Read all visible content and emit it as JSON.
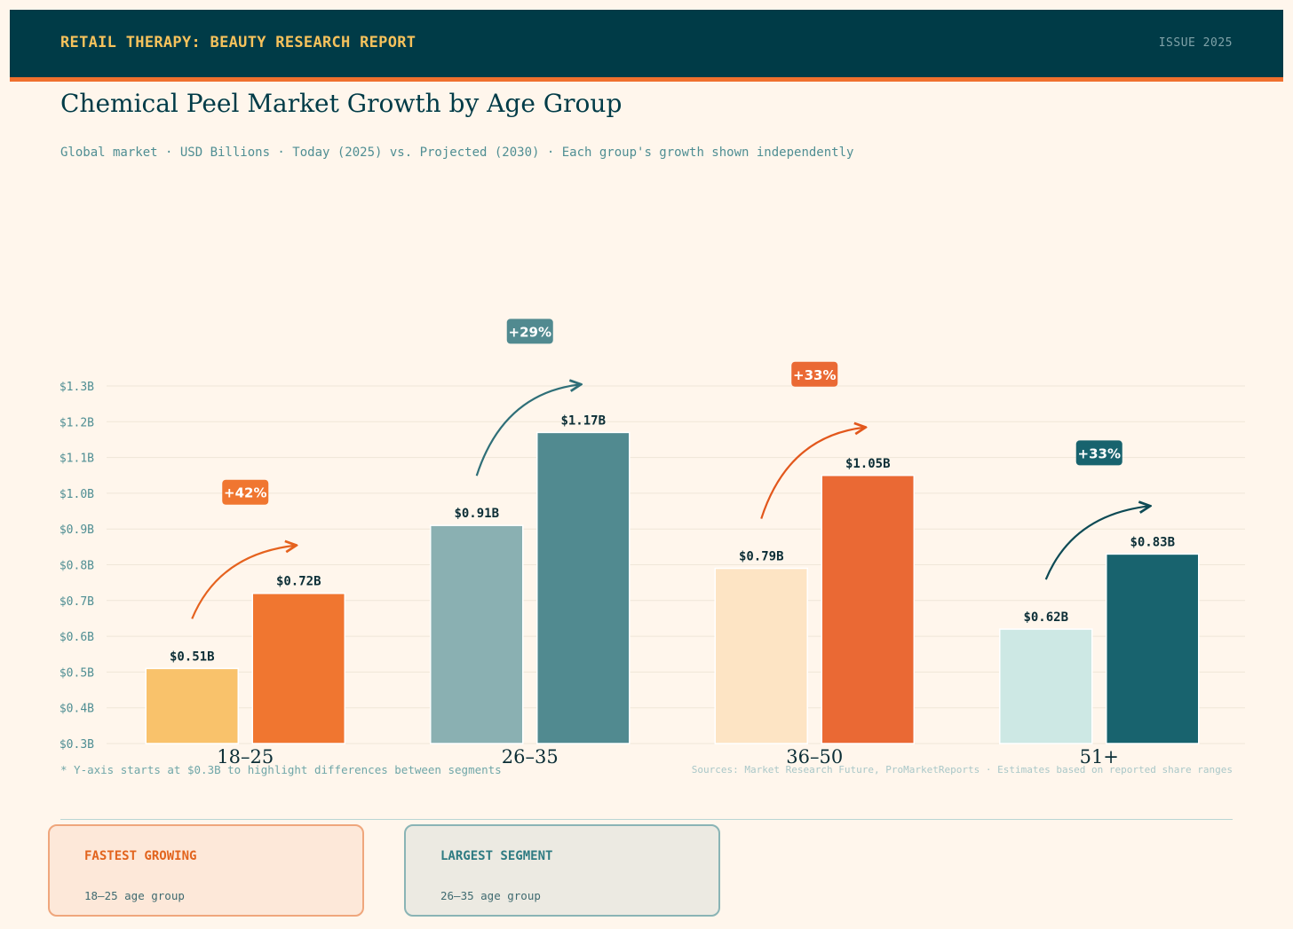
{
  "header": {
    "brand": "RETAIL THERAPY: BEAUTY RESEARCH REPORT",
    "issue": "ISSUE 2025"
  },
  "title": "Chemical Peel Market Growth by Age Group",
  "subtitle": "Global market · USD Billions · Today (2025) vs. Projected (2030) · Each group's growth shown independently",
  "chart_data": {
    "type": "bar",
    "title": "Chemical Peel Market Growth by Age Group",
    "categories": [
      "18–25",
      "26–35",
      "36–50",
      "51+"
    ],
    "series": [
      {
        "name": "Today (2025)",
        "values": [
          0.51,
          0.91,
          0.79,
          0.62
        ],
        "colors": [
          "#f9c26b",
          "#8ab0b2",
          "#fde4c4",
          "#cde8e4"
        ]
      },
      {
        "name": "Projected (2030)",
        "values": [
          0.72,
          1.17,
          1.05,
          0.83
        ],
        "colors": [
          "#f07630",
          "#518a90",
          "#ea6934",
          "#18636e"
        ]
      }
    ],
    "value_labels": {
      "today": [
        "$0.51B",
        "$0.91B",
        "$0.79B",
        "$0.62B"
      ],
      "projected": [
        "$0.72B",
        "$1.17B",
        "$1.05B",
        "$0.83B"
      ]
    },
    "growth": [
      "+42%",
      "+29%",
      "+33%",
      "+33%"
    ],
    "growth_colors": [
      "#f07630",
      "#518a90",
      "#ea6934",
      "#18636e"
    ],
    "arrow_colors": [
      "#e5621e",
      "#2f6f78",
      "#e2571c",
      "#0d4a55"
    ],
    "ylim": [
      0.3,
      1.3
    ],
    "yticks": [
      0.3,
      0.4,
      0.5,
      0.6,
      0.7,
      0.8,
      0.9,
      1.0,
      1.1,
      1.2,
      1.3
    ],
    "ytick_labels": [
      "$0.3B",
      "$0.4B",
      "$0.5B",
      "$0.6B",
      "$0.7B",
      "$0.8B",
      "$0.9B",
      "$1.0B",
      "$1.1B",
      "$1.2B",
      "$1.3B"
    ],
    "grid": true
  },
  "footnote": "* Y-axis starts at $0.3B to highlight differences between segments",
  "sources": "Sources: Market Research Future, ProMarketReports · Estimates based on reported share ranges",
  "cards": [
    {
      "heading": "FASTEST GROWING",
      "body": "18–25 age group"
    },
    {
      "heading": "LARGEST SEGMENT",
      "body": "26–35 age group"
    }
  ]
}
